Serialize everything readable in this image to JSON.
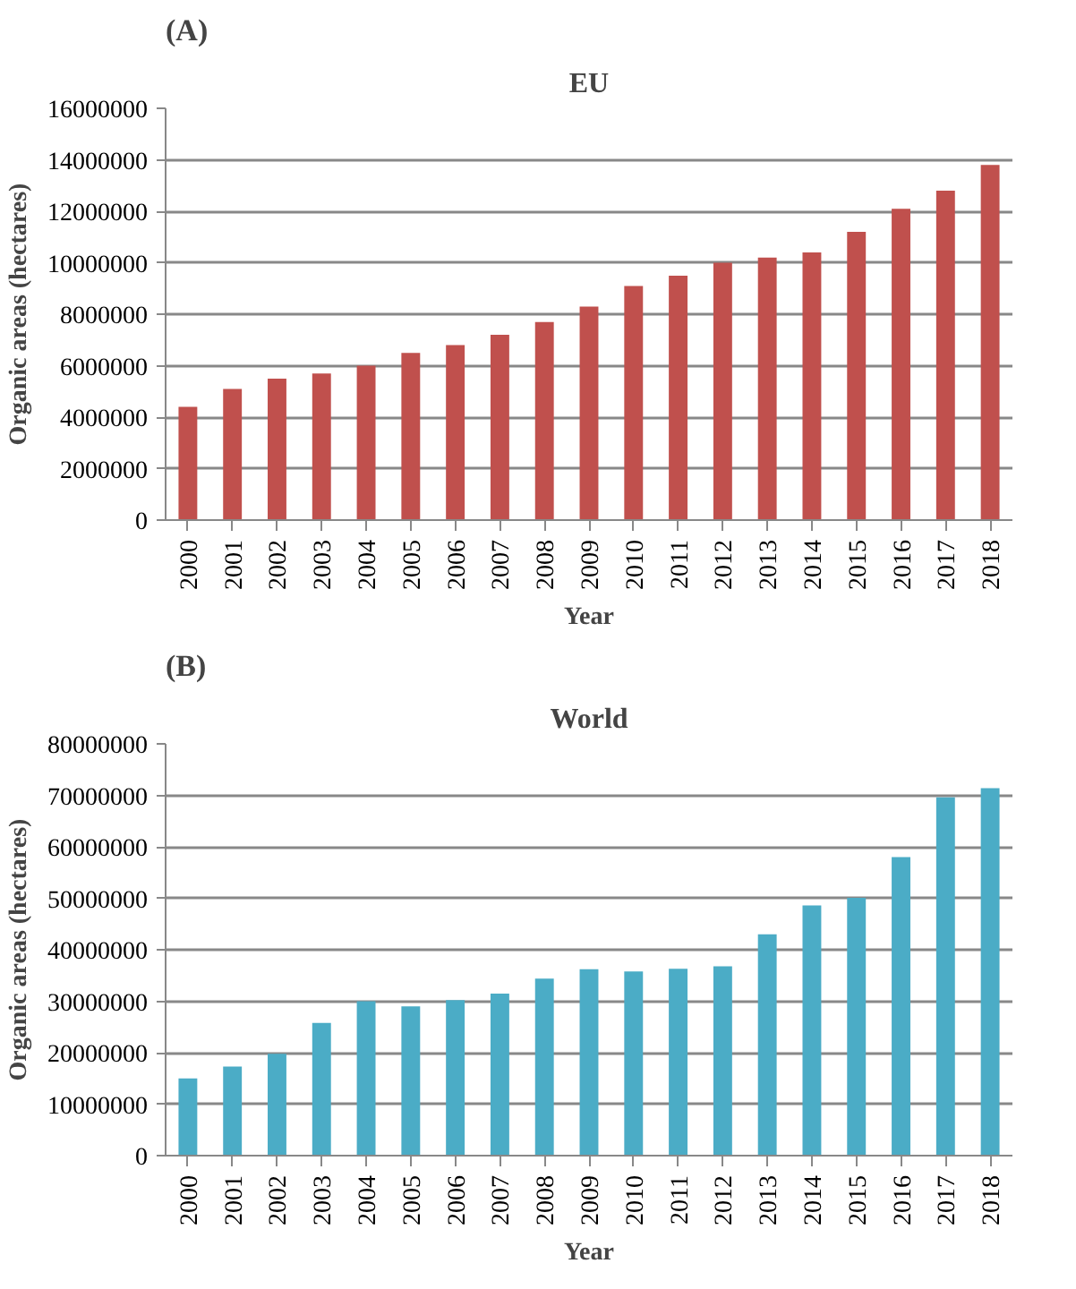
{
  "chart_data": [
    {
      "type": "bar",
      "title": "EU",
      "annotations": [
        "(A)"
      ],
      "xlabel": "Year",
      "ylabel": "Organic areas (hectares)",
      "categories": [
        "2000",
        "2001",
        "2002",
        "2003",
        "2004",
        "2005",
        "2006",
        "2007",
        "2008",
        "2009",
        "2010",
        "2011",
        "2012",
        "2013",
        "2014",
        "2015",
        "2016",
        "2017",
        "2018"
      ],
      "series": [
        {
          "color": "#c0504d",
          "values": [
            4400000,
            5100000,
            5500000,
            5700000,
            6000000,
            6500000,
            6800000,
            7200000,
            7700000,
            8300000,
            9100000,
            9500000,
            10000000,
            10200000,
            10400000,
            11200000,
            12100000,
            12800000,
            13800000
          ]
        }
      ],
      "ylim": [
        0,
        16000000
      ],
      "yticks": [
        0,
        2000000,
        4000000,
        6000000,
        8000000,
        10000000,
        12000000,
        14000000,
        16000000
      ],
      "grid": "y"
    },
    {
      "type": "bar",
      "title": "World",
      "annotations": [
        "(B)"
      ],
      "xlabel": "Year",
      "ylabel": "Organic areas (hectares)",
      "categories": [
        "2000",
        "2001",
        "2002",
        "2003",
        "2004",
        "2005",
        "2006",
        "2007",
        "2008",
        "2009",
        "2010",
        "2011",
        "2012",
        "2013",
        "2014",
        "2015",
        "2016",
        "2017",
        "2018"
      ],
      "series": [
        {
          "color": "#4bacc6",
          "values": [
            15000000,
            17300000,
            19800000,
            25800000,
            30000000,
            29000000,
            30200000,
            31500000,
            34400000,
            36200000,
            35800000,
            36300000,
            36800000,
            43000000,
            48600000,
            50100000,
            58000000,
            69600000,
            71400000
          ]
        }
      ],
      "ylim": [
        0,
        80000000
      ],
      "yticks": [
        0,
        10000000,
        20000000,
        30000000,
        40000000,
        50000000,
        60000000,
        70000000,
        80000000
      ],
      "grid": "y"
    }
  ]
}
